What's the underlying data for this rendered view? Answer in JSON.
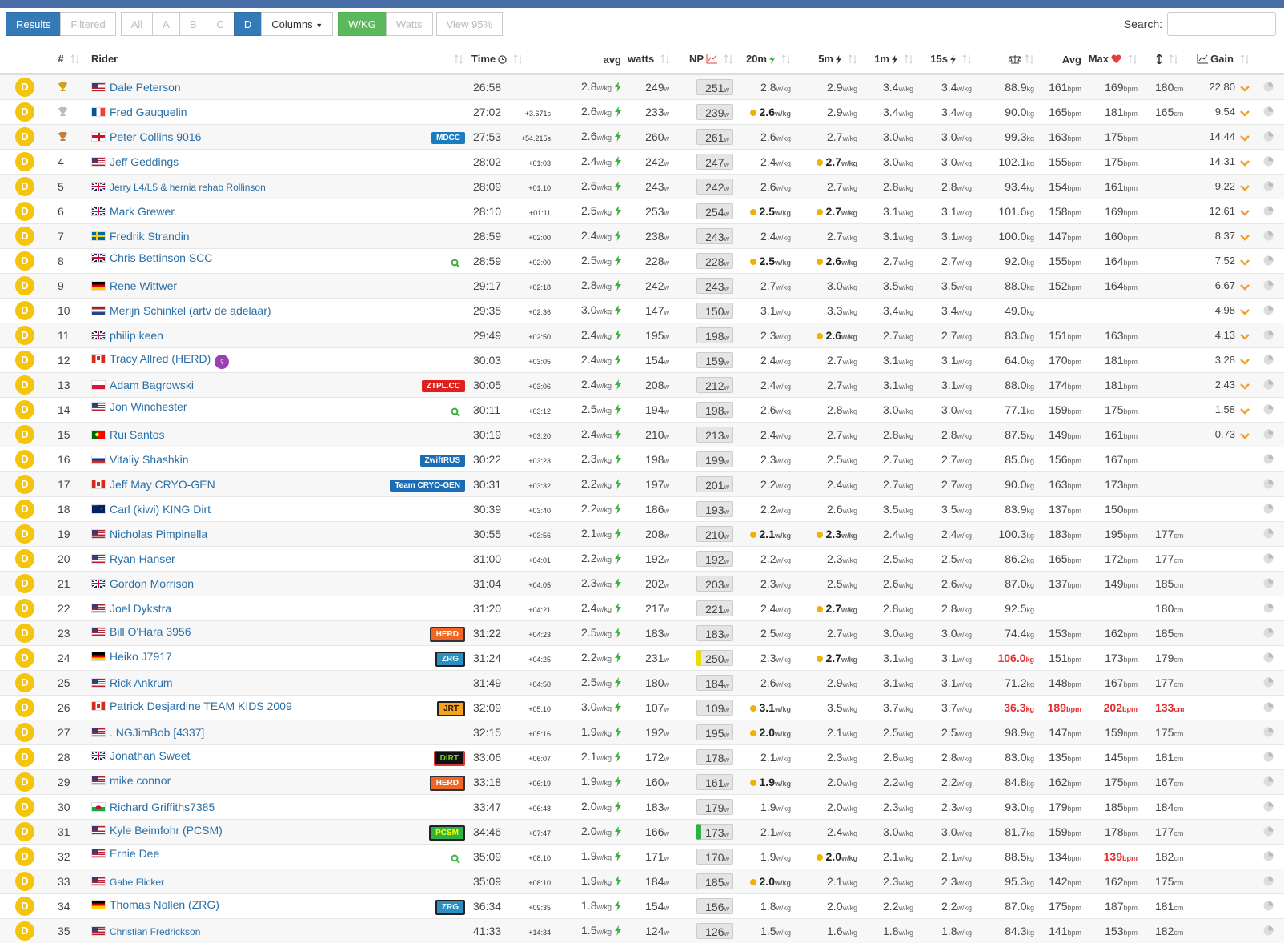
{
  "toolbar": {
    "results": "Results",
    "filtered": "Filtered",
    "all": "All",
    "a": "A",
    "b": "B",
    "c": "C",
    "d": "D",
    "columns": "Columns",
    "wkg": "W/KG",
    "watts": "Watts",
    "view": "View 95%",
    "search": "Search:"
  },
  "headers": {
    "pos": "#",
    "rider": "Rider",
    "time": "Time",
    "avg": "avg",
    "watts": "watts",
    "np": "NP",
    "w20": "20m",
    "w5m": "5m",
    "w1m": "1m",
    "w15s": "15s",
    "hr_avg": "Avg",
    "hr_max": "Max",
    "gain": "Gain"
  },
  "units": {
    "wkg": "w/kg",
    "w": "w",
    "kg": "kg",
    "bpm": "bpm",
    "cm": "cm"
  },
  "rows": [
    {
      "cat": "D",
      "trophy": "gold",
      "flag": "us",
      "rider": "Dale Peterson",
      "time": "26:58",
      "avg": "2.8",
      "watts": "249",
      "np": "251",
      "w20": "2.8",
      "w5m": "2.9",
      "w1m": "3.4",
      "w15s": "3.4",
      "weight": "88.9",
      "hr_avg": "161",
      "hr_max": "169",
      "height": "180",
      "gain": "22.80"
    },
    {
      "cat": "D",
      "trophy": "silver",
      "flag": "fr",
      "rider": "Fred Gauquelin",
      "time": "27:02",
      "gap": "+3.671s",
      "avg": "2.6",
      "watts": "233",
      "np": "239",
      "w20": "2.6",
      "w5m": "2.9",
      "w1m": "3.4",
      "w15s": "3.4",
      "weight": "90.0",
      "hr_avg": "165",
      "hr_max": "181",
      "height": "165",
      "gain": "9.54",
      "pr": [
        "w20"
      ]
    },
    {
      "cat": "D",
      "trophy": "bronze",
      "flag": "eng",
      "rider": "Peter Collins 9016",
      "team": {
        "name": "MDCC",
        "bg": "#1b7dc0",
        "fg": "#fff"
      },
      "time": "27:53",
      "gap": "+54.215s",
      "avg": "2.6",
      "watts": "260",
      "np": "261",
      "w20": "2.6",
      "w5m": "2.7",
      "w1m": "3.0",
      "w15s": "3.0",
      "weight": "99.3",
      "hr_avg": "163",
      "hr_max": "175",
      "gain": "14.44"
    },
    {
      "cat": "D",
      "pos": "4",
      "flag": "us",
      "rider": "Jeff Geddings",
      "time": "28:02",
      "gap": "+01:03",
      "avg": "2.4",
      "watts": "242",
      "np": "247",
      "w20": "2.4",
      "w5m": "2.7",
      "w1m": "3.0",
      "w15s": "3.0",
      "weight": "102.1",
      "hr_avg": "155",
      "hr_max": "175",
      "gain": "14.31",
      "pr": [
        "w5m"
      ]
    },
    {
      "cat": "D",
      "pos": "5",
      "flag": "gb",
      "rider": "Jerry L4/L5 & hernia rehab Rollinson",
      "small": true,
      "time": "28:09",
      "gap": "+01:10",
      "avg": "2.6",
      "watts": "243",
      "np": "242",
      "w20": "2.6",
      "w5m": "2.7",
      "w1m": "2.8",
      "w15s": "2.8",
      "weight": "93.4",
      "hr_avg": "154",
      "hr_max": "161",
      "gain": "9.22"
    },
    {
      "cat": "D",
      "pos": "6",
      "flag": "gb",
      "rider": "Mark Grewer",
      "time": "28:10",
      "gap": "+01:11",
      "avg": "2.5",
      "watts": "253",
      "np": "254",
      "w20": "2.5",
      "w5m": "2.7",
      "w1m": "3.1",
      "w15s": "3.1",
      "weight": "101.6",
      "hr_avg": "158",
      "hr_max": "169",
      "gain": "12.61",
      "pr": [
        "w20",
        "w5m"
      ]
    },
    {
      "cat": "D",
      "pos": "7",
      "flag": "se",
      "rider": "Fredrik Strandin",
      "time": "28:59",
      "gap": "+02:00",
      "avg": "2.4",
      "watts": "238",
      "np": "243",
      "w20": "2.4",
      "w5m": "2.7",
      "w1m": "3.1",
      "w15s": "3.1",
      "weight": "100.0",
      "hr_avg": "147",
      "hr_max": "160",
      "gain": "8.37"
    },
    {
      "cat": "D",
      "pos": "8",
      "flag": "gb",
      "rider": "Chris Bettinson SCC",
      "icon": "search",
      "time": "28:59",
      "gap": "+02:00",
      "avg": "2.5",
      "watts": "228",
      "np": "228",
      "w20": "2.5",
      "w5m": "2.6",
      "w1m": "2.7",
      "w15s": "2.7",
      "weight": "92.0",
      "hr_avg": "155",
      "hr_max": "164",
      "gain": "7.52",
      "pr": [
        "w20",
        "w5m"
      ]
    },
    {
      "cat": "D",
      "pos": "9",
      "flag": "de",
      "rider": "Rene Wittwer",
      "time": "29:17",
      "gap": "+02:18",
      "avg": "2.8",
      "watts": "242",
      "np": "243",
      "w20": "2.7",
      "w5m": "3.0",
      "w1m": "3.5",
      "w15s": "3.5",
      "weight": "88.0",
      "hr_avg": "152",
      "hr_max": "164",
      "gain": "6.67"
    },
    {
      "cat": "D",
      "pos": "10",
      "flag": "nl",
      "rider": "Merijn Schinkel (artv de adelaar)",
      "time": "29:35",
      "gap": "+02:36",
      "avg": "3.0",
      "watts": "147",
      "np": "150",
      "w20": "3.1",
      "w5m": "3.3",
      "w1m": "3.4",
      "w15s": "3.4",
      "weight": "49.0",
      "gain": "4.98"
    },
    {
      "cat": "D",
      "pos": "11",
      "flag": "gb",
      "rider": "philip keen",
      "time": "29:49",
      "gap": "+02:50",
      "avg": "2.4",
      "watts": "195",
      "np": "198",
      "w20": "2.3",
      "w5m": "2.6",
      "w1m": "2.7",
      "w15s": "2.7",
      "weight": "83.0",
      "hr_avg": "151",
      "hr_max": "163",
      "gain": "4.13",
      "pr": [
        "w5m"
      ]
    },
    {
      "cat": "D",
      "pos": "12",
      "flag": "ca",
      "rider": "Tracy Allred (HERD)",
      "icon": "female",
      "time": "30:03",
      "gap": "+03:05",
      "avg": "2.4",
      "watts": "154",
      "np": "159",
      "w20": "2.4",
      "w5m": "2.7",
      "w1m": "3.1",
      "w15s": "3.1",
      "weight": "64.0",
      "hr_avg": "170",
      "hr_max": "181",
      "gain": "3.28"
    },
    {
      "cat": "D",
      "pos": "13",
      "flag": "pl",
      "rider": "Adam Bagrowski",
      "team": {
        "name": "ZTPL.CC",
        "bg": "#e01f1f",
        "fg": "#fff"
      },
      "time": "30:05",
      "gap": "+03:06",
      "avg": "2.4",
      "watts": "208",
      "np": "212",
      "w20": "2.4",
      "w5m": "2.7",
      "w1m": "3.1",
      "w15s": "3.1",
      "weight": "88.0",
      "hr_avg": "174",
      "hr_max": "181",
      "gain": "2.43"
    },
    {
      "cat": "D",
      "pos": "14",
      "flag": "us",
      "rider": "Jon Winchester",
      "icon": "search",
      "time": "30:11",
      "gap": "+03:12",
      "avg": "2.5",
      "watts": "194",
      "np": "198",
      "w20": "2.6",
      "w5m": "2.8",
      "w1m": "3.0",
      "w15s": "3.0",
      "weight": "77.1",
      "hr_avg": "159",
      "hr_max": "175",
      "gain": "1.58"
    },
    {
      "cat": "D",
      "pos": "15",
      "flag": "pt",
      "rider": "Rui Santos",
      "time": "30:19",
      "gap": "+03:20",
      "avg": "2.4",
      "watts": "210",
      "np": "213",
      "w20": "2.4",
      "w5m": "2.7",
      "w1m": "2.8",
      "w15s": "2.8",
      "weight": "87.5",
      "hr_avg": "149",
      "hr_max": "161",
      "gain": "0.73"
    },
    {
      "cat": "D",
      "pos": "16",
      "flag": "ru",
      "rider": "Vitaliy Shashkin",
      "team": {
        "name": "ZwiftRUS",
        "bg": "#1a6db5",
        "fg": "#fff"
      },
      "time": "30:22",
      "gap": "+03:23",
      "avg": "2.3",
      "watts": "198",
      "np": "199",
      "w20": "2.3",
      "w5m": "2.5",
      "w1m": "2.7",
      "w15s": "2.7",
      "weight": "85.0",
      "hr_avg": "156",
      "hr_max": "167"
    },
    {
      "cat": "D",
      "pos": "17",
      "flag": "ca",
      "rider": "Jeff May CRYO-GEN",
      "team": {
        "name": "Team CRYO-GEN",
        "bg": "#1a6db5",
        "fg": "#fff"
      },
      "time": "30:31",
      "gap": "+03:32",
      "avg": "2.2",
      "watts": "197",
      "np": "201",
      "w20": "2.2",
      "w5m": "2.4",
      "w1m": "2.7",
      "w15s": "2.7",
      "weight": "90.0",
      "hr_avg": "163",
      "hr_max": "173"
    },
    {
      "cat": "D",
      "pos": "18",
      "flag": "nz",
      "rider": "Carl (kiwi) KING Dirt",
      "time": "30:39",
      "gap": "+03:40",
      "avg": "2.2",
      "watts": "186",
      "np": "193",
      "w20": "2.2",
      "w5m": "2.6",
      "w1m": "3.5",
      "w15s": "3.5",
      "weight": "83.9",
      "hr_avg": "137",
      "hr_max": "150"
    },
    {
      "cat": "D",
      "pos": "19",
      "flag": "us",
      "rider": "Nicholas Pimpinella",
      "time": "30:55",
      "gap": "+03:56",
      "avg": "2.1",
      "watts": "208",
      "np": "210",
      "w20": "2.1",
      "w5m": "2.3",
      "w1m": "2.4",
      "w15s": "2.4",
      "weight": "100.3",
      "hr_avg": "183",
      "hr_max": "195",
      "height": "177",
      "pr": [
        "w20",
        "w5m"
      ]
    },
    {
      "cat": "D",
      "pos": "20",
      "flag": "us",
      "rider": "Ryan Hanser",
      "time": "31:00",
      "gap": "+04:01",
      "avg": "2.2",
      "watts": "192",
      "np": "192",
      "w20": "2.2",
      "w5m": "2.3",
      "w1m": "2.5",
      "w15s": "2.5",
      "weight": "86.2",
      "hr_avg": "165",
      "hr_max": "172",
      "height": "177"
    },
    {
      "cat": "D",
      "pos": "21",
      "flag": "gb",
      "rider": "Gordon Morrison",
      "time": "31:04",
      "gap": "+04:05",
      "avg": "2.3",
      "watts": "202",
      "np": "203",
      "w20": "2.3",
      "w5m": "2.5",
      "w1m": "2.6",
      "w15s": "2.6",
      "weight": "87.0",
      "hr_avg": "137",
      "hr_max": "149",
      "height": "185"
    },
    {
      "cat": "D",
      "pos": "22",
      "flag": "us",
      "rider": "Joel Dykstra",
      "time": "31:20",
      "gap": "+04:21",
      "avg": "2.4",
      "watts": "217",
      "np": "221",
      "w20": "2.4",
      "w5m": "2.7",
      "w1m": "2.8",
      "w15s": "2.8",
      "weight": "92.5",
      "height": "180",
      "pr": [
        "w5m"
      ]
    },
    {
      "cat": "D",
      "pos": "23",
      "flag": "us",
      "rider": "Bill O'Hara 3956",
      "team": {
        "name": "HERD",
        "bg": "#f26522",
        "fg": "#fff",
        "border": "#333"
      },
      "time": "31:22",
      "gap": "+04:23",
      "avg": "2.5",
      "watts": "183",
      "np": "183",
      "w20": "2.5",
      "w5m": "2.7",
      "w1m": "3.0",
      "w15s": "3.0",
      "weight": "74.4",
      "hr_avg": "153",
      "hr_max": "162",
      "height": "185"
    },
    {
      "cat": "D",
      "pos": "24",
      "flag": "de",
      "rider": "Heiko J7917",
      "team": {
        "name": "ZRG",
        "bg": "#2b8fc4",
        "fg": "#dff",
        "border": "#222"
      },
      "time": "31:24",
      "gap": "+04:25",
      "avg": "2.2",
      "watts": "231",
      "np": "250",
      "np_mark": "#e8dc00",
      "w20": "2.3",
      "w5m": "2.7",
      "w1m": "3.1",
      "w15s": "3.1",
      "weight": "106.0",
      "hr_avg": "151",
      "hr_max": "173",
      "height": "179",
      "pr": [
        "w5m"
      ],
      "red": [
        "weight"
      ]
    },
    {
      "cat": "D",
      "pos": "25",
      "flag": "us",
      "rider": "Rick Ankrum",
      "time": "31:49",
      "gap": "+04:50",
      "avg": "2.5",
      "watts": "180",
      "np": "184",
      "w20": "2.6",
      "w5m": "2.9",
      "w1m": "3.1",
      "w15s": "3.1",
      "weight": "71.2",
      "hr_avg": "148",
      "hr_max": "167",
      "height": "177"
    },
    {
      "cat": "D",
      "pos": "26",
      "flag": "ca",
      "rider": "Patrick Desjardine TEAM KIDS 2009",
      "team": {
        "name": "JRT",
        "bg": "#f7a41d",
        "fg": "#111",
        "border": "#222"
      },
      "time": "32:09",
      "gap": "+05:10",
      "avg": "3.0",
      "watts": "107",
      "np": "109",
      "w20": "3.1",
      "w5m": "3.5",
      "w1m": "3.7",
      "w15s": "3.7",
      "weight": "36.3",
      "hr_avg": "189",
      "hr_max": "202",
      "height": "133",
      "pr": [
        "w20"
      ],
      "red": [
        "weight",
        "hr_avg",
        "hr_max",
        "height"
      ]
    },
    {
      "cat": "D",
      "pos": "27",
      "flag": "us",
      "rider": ". NGJimBob [4337]",
      "time": "32:15",
      "gap": "+05:16",
      "avg": "1.9",
      "watts": "192",
      "np": "195",
      "w20": "2.0",
      "w5m": "2.1",
      "w1m": "2.5",
      "w15s": "2.5",
      "weight": "98.9",
      "hr_avg": "147",
      "hr_max": "159",
      "height": "175",
      "pr": [
        "w20"
      ]
    },
    {
      "cat": "D",
      "pos": "28",
      "flag": "gb",
      "rider": "Jonathan Sweet",
      "team": {
        "name": "DIRT",
        "bg": "#111",
        "fg": "#6fd12c",
        "border": "#d33"
      },
      "time": "33:06",
      "gap": "+06:07",
      "avg": "2.1",
      "watts": "172",
      "np": "178",
      "w20": "2.1",
      "w5m": "2.3",
      "w1m": "2.8",
      "w15s": "2.8",
      "weight": "83.0",
      "hr_avg": "135",
      "hr_max": "145",
      "height": "181"
    },
    {
      "cat": "D",
      "pos": "29",
      "flag": "us",
      "rider": "mike connor",
      "team": {
        "name": "HERD",
        "bg": "#f26522",
        "fg": "#fff",
        "border": "#333"
      },
      "time": "33:18",
      "gap": "+06:19",
      "avg": "1.9",
      "watts": "160",
      "np": "161",
      "w20": "1.9",
      "w5m": "2.0",
      "w1m": "2.2",
      "w15s": "2.2",
      "weight": "84.8",
      "hr_avg": "162",
      "hr_max": "175",
      "height": "167",
      "pr": [
        "w20"
      ]
    },
    {
      "cat": "D",
      "pos": "30",
      "flag": "wales",
      "rider": "Richard Griffiths7385",
      "time": "33:47",
      "gap": "+06:48",
      "avg": "2.0",
      "watts": "183",
      "np": "179",
      "w20": "1.9",
      "w5m": "2.0",
      "w1m": "2.3",
      "w15s": "2.3",
      "weight": "93.0",
      "hr_avg": "179",
      "hr_max": "185",
      "height": "184"
    },
    {
      "cat": "D",
      "pos": "31",
      "flag": "us",
      "rider": "Kyle Beimfohr (PCSM)",
      "team": {
        "name": "PCSM",
        "bg": "#2bb34a",
        "fg": "#ff0",
        "border": "#222"
      },
      "time": "34:46",
      "gap": "+07:47",
      "avg": "2.0",
      "watts": "166",
      "np": "173",
      "np_mark": "#2bb34a",
      "w20": "2.1",
      "w5m": "2.4",
      "w1m": "3.0",
      "w15s": "3.0",
      "weight": "81.7",
      "hr_avg": "159",
      "hr_max": "178",
      "height": "177"
    },
    {
      "cat": "D",
      "pos": "32",
      "flag": "us",
      "rider": "Ernie Dee",
      "icon": "search",
      "time": "35:09",
      "gap": "+08:10",
      "avg": "1.9",
      "watts": "171",
      "np": "170",
      "w20": "1.9",
      "w5m": "2.0",
      "w1m": "2.1",
      "w15s": "2.1",
      "weight": "88.5",
      "hr_avg": "134",
      "hr_max": "139",
      "height": "182",
      "pr": [
        "w5m"
      ],
      "red": [
        "hr_max"
      ]
    },
    {
      "cat": "D",
      "pos": "33",
      "flag": "us",
      "rider": "Gabe Flicker",
      "small": true,
      "time": "35:09",
      "gap": "+08:10",
      "avg": "1.9",
      "watts": "184",
      "np": "185",
      "w20": "2.0",
      "w5m": "2.1",
      "w1m": "2.3",
      "w15s": "2.3",
      "weight": "95.3",
      "hr_avg": "142",
      "hr_max": "162",
      "height": "175",
      "pr": [
        "w20"
      ]
    },
    {
      "cat": "D",
      "pos": "34",
      "flag": "de",
      "rider": "Thomas Nollen (ZRG)",
      "team": {
        "name": "ZRG",
        "bg": "#2b8fc4",
        "fg": "#dff",
        "border": "#222"
      },
      "time": "36:34",
      "gap": "+09:35",
      "avg": "1.8",
      "watts": "154",
      "np": "156",
      "w20": "1.8",
      "w5m": "2.0",
      "w1m": "2.2",
      "w15s": "2.2",
      "weight": "87.0",
      "hr_avg": "175",
      "hr_max": "187",
      "height": "181"
    },
    {
      "cat": "D",
      "pos": "35",
      "flag": "us",
      "rider": "Christian Fredrickson",
      "small": true,
      "time": "41:33",
      "gap": "+14:34",
      "avg": "1.5",
      "watts": "124",
      "np": "126",
      "w20": "1.5",
      "w5m": "1.6",
      "w1m": "1.8",
      "w15s": "1.8",
      "weight": "84.3",
      "hr_avg": "141",
      "hr_max": "153",
      "height": "182"
    }
  ]
}
